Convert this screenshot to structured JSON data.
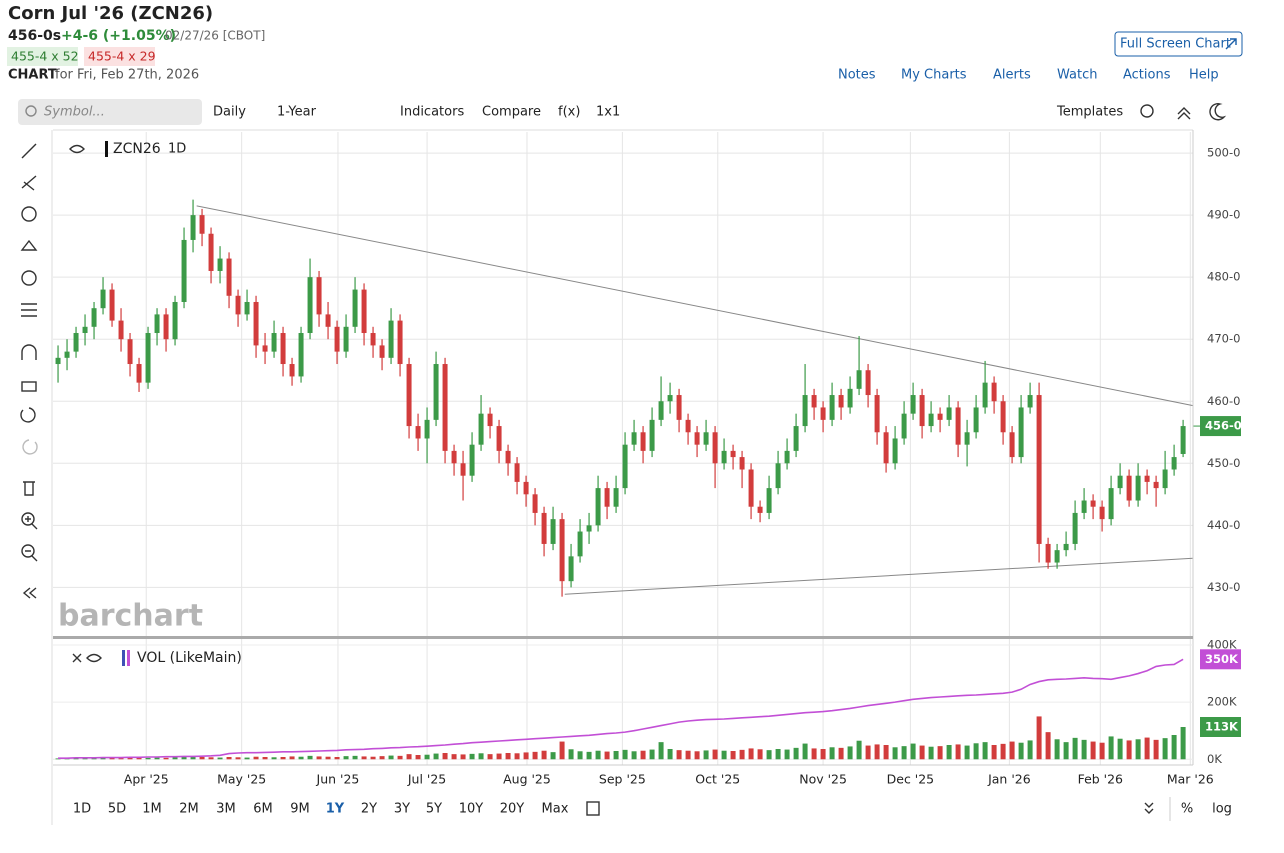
{
  "header": {
    "title": "Corn Jul '26 (ZCN26)",
    "price": "456-0s",
    "change": "+4-6 (+1.05%)",
    "date": "02/27/26 [CBOT]",
    "bid": "455-4 x 52",
    "ask": "455-4 x 29",
    "chart_label": "CHART",
    "chart_date": "for Fri, Feb 27th, 2026",
    "full_screen": "Full Screen Chart",
    "links": [
      "Notes",
      "My Charts",
      "Alerts",
      "Watch",
      "Actions",
      "Help"
    ]
  },
  "toolbar": {
    "symbol_placeholder": "Symbol...",
    "items": [
      "Daily",
      "1-Year",
      "Indicators",
      "Compare",
      "f(x)",
      "1x1"
    ],
    "templates": "Templates"
  },
  "watermark": "barchart",
  "ranges": {
    "buttons": [
      "1D",
      "5D",
      "1M",
      "2M",
      "3M",
      "6M",
      "9M",
      "1Y",
      "2Y",
      "3Y",
      "5Y",
      "10Y",
      "20Y",
      "Max"
    ],
    "active": "1Y",
    "percent": "%",
    "log": "log"
  },
  "chart_data": [
    {
      "type": "candlestick",
      "symbol": "ZCN26",
      "interval": "1D",
      "up_color": "#3c9a48",
      "down_color": "#d23c3c",
      "xlim": [
        -0.56,
        126.1
      ],
      "ylim": [
        422,
        503.4
      ],
      "grid": true,
      "xticks": [
        {
          "value": 9.8,
          "label": "Apr '25"
        },
        {
          "value": 20.4,
          "label": "May '25"
        },
        {
          "value": 31.1,
          "label": "Jun '25"
        },
        {
          "value": 41,
          "label": "Jul '25"
        },
        {
          "value": 52.1,
          "label": "Aug '25"
        },
        {
          "value": 62.7,
          "label": "Sep '25"
        },
        {
          "value": 73.3,
          "label": "Oct '25"
        },
        {
          "value": 85,
          "label": "Nov '25"
        },
        {
          "value": 94.7,
          "label": "Dec '25"
        },
        {
          "value": 105.7,
          "label": "Jan '26"
        },
        {
          "value": 115.8,
          "label": "Feb '26"
        },
        {
          "value": 125.8,
          "label": "Mar '26"
        }
      ],
      "yticks": [
        {
          "value": 500,
          "label": "500-0"
        },
        {
          "value": 490,
          "label": "490-0"
        },
        {
          "value": 480,
          "label": "480-0"
        },
        {
          "value": 470,
          "label": "470-0"
        },
        {
          "value": 460,
          "label": "460-0"
        },
        {
          "value": 450,
          "label": "450-0"
        },
        {
          "value": 440,
          "label": "440-0"
        },
        {
          "value": 430,
          "label": "430-0"
        }
      ],
      "last": {
        "value": 456,
        "label": "456-0"
      },
      "trendlines": [
        [
          [
            15.4,
            491.5
          ],
          [
            126.1,
            459.3
          ]
        ],
        [
          [
            56.3,
            428.9
          ],
          [
            126.1,
            434.7
          ]
        ]
      ],
      "ohlc": [
        [
          466,
          469,
          463,
          467
        ],
        [
          467,
          470,
          465,
          468
        ],
        [
          468,
          472,
          467,
          471
        ],
        [
          471,
          474,
          469,
          472
        ],
        [
          472,
          476,
          470,
          475
        ],
        [
          475,
          480,
          474,
          478
        ],
        [
          478,
          479,
          472,
          473
        ],
        [
          473,
          475,
          468,
          470
        ],
        [
          470,
          471,
          464,
          466
        ],
        [
          466,
          467,
          461.5,
          463
        ],
        [
          463,
          472,
          462,
          471
        ],
        [
          471,
          475,
          469,
          474
        ],
        [
          474,
          475,
          468,
          470
        ],
        [
          470,
          477,
          469,
          476
        ],
        [
          476,
          488,
          475,
          486
        ],
        [
          486,
          492.5,
          484,
          490
        ],
        [
          490,
          491,
          485,
          487
        ],
        [
          487,
          488,
          479,
          481
        ],
        [
          481,
          485,
          479,
          483
        ],
        [
          483,
          484,
          475,
          477
        ],
        [
          477,
          478,
          472,
          474
        ],
        [
          474,
          478,
          473,
          476
        ],
        [
          476,
          477,
          467,
          469
        ],
        [
          469,
          471,
          466,
          468
        ],
        [
          468,
          473,
          467,
          471
        ],
        [
          471,
          472,
          464,
          466
        ],
        [
          466,
          467,
          462.5,
          464
        ],
        [
          464,
          472,
          463,
          471
        ],
        [
          471,
          483,
          470,
          480
        ],
        [
          480,
          481,
          472,
          474
        ],
        [
          474,
          476,
          470,
          472
        ],
        [
          472,
          473,
          466,
          468
        ],
        [
          468,
          474,
          467,
          472
        ],
        [
          472,
          480,
          471,
          478
        ],
        [
          478,
          479,
          469,
          471
        ],
        [
          471,
          472,
          467,
          469
        ],
        [
          469,
          470,
          465,
          467
        ],
        [
          467,
          475,
          466,
          473
        ],
        [
          473,
          474,
          464,
          466
        ],
        [
          466,
          467,
          454,
          456
        ],
        [
          456,
          458,
          452,
          454
        ],
        [
          454,
          459,
          450,
          457
        ],
        [
          457,
          468,
          456,
          466
        ],
        [
          466,
          467,
          450,
          452
        ],
        [
          452,
          453,
          448,
          450
        ],
        [
          450,
          452,
          444,
          448
        ],
        [
          448,
          455,
          447,
          453
        ],
        [
          453,
          461,
          452,
          458
        ],
        [
          458,
          459,
          454,
          456
        ],
        [
          456,
          457,
          450,
          452
        ],
        [
          452,
          453,
          448,
          450
        ],
        [
          450,
          451,
          445,
          447
        ],
        [
          447,
          448,
          443,
          445
        ],
        [
          445,
          446,
          440,
          442
        ],
        [
          442,
          443,
          435,
          437
        ],
        [
          437,
          443,
          436,
          441
        ],
        [
          441,
          442,
          428.5,
          431
        ],
        [
          431,
          437,
          430,
          435
        ],
        [
          435,
          441,
          434,
          439
        ],
        [
          439,
          442,
          437,
          440
        ],
        [
          440,
          448,
          439,
          446
        ],
        [
          446,
          447,
          441,
          443
        ],
        [
          443,
          448,
          442,
          446
        ],
        [
          446,
          455,
          445,
          453
        ],
        [
          453,
          457,
          452,
          455
        ],
        [
          455,
          456,
          450,
          452
        ],
        [
          452,
          459,
          451,
          457
        ],
        [
          457,
          464,
          456,
          460
        ],
        [
          460,
          463,
          458,
          461
        ],
        [
          461,
          462,
          455,
          457
        ],
        [
          457,
          458,
          453,
          455
        ],
        [
          455,
          456,
          451,
          453
        ],
        [
          453,
          457,
          452,
          455
        ],
        [
          455,
          456,
          446,
          450
        ],
        [
          450,
          454,
          449,
          452
        ],
        [
          452,
          453,
          449,
          451
        ],
        [
          451,
          452,
          446,
          449
        ],
        [
          449,
          450,
          441,
          443
        ],
        [
          443,
          444,
          440.5,
          442
        ],
        [
          442,
          448,
          441,
          446
        ],
        [
          446,
          452,
          445,
          450
        ],
        [
          450,
          454,
          449,
          452
        ],
        [
          452,
          458,
          451,
          456
        ],
        [
          456,
          466,
          455,
          461
        ],
        [
          461,
          462,
          457,
          459
        ],
        [
          459,
          460,
          455,
          457
        ],
        [
          457,
          463,
          456,
          461
        ],
        [
          461,
          462,
          457,
          459
        ],
        [
          459,
          464,
          458,
          462
        ],
        [
          462,
          470.5,
          461,
          465
        ],
        [
          465,
          466,
          459,
          461
        ],
        [
          461,
          462,
          453,
          455
        ],
        [
          455,
          456,
          448.5,
          450
        ],
        [
          450,
          456,
          449,
          454
        ],
        [
          454,
          460,
          453,
          458
        ],
        [
          458,
          463,
          457,
          461
        ],
        [
          461,
          462,
          454,
          456
        ],
        [
          456,
          460,
          455,
          458
        ],
        [
          458,
          459,
          455,
          457
        ],
        [
          457,
          461,
          456,
          459
        ],
        [
          459,
          460,
          451,
          453
        ],
        [
          453,
          457,
          449.5,
          455
        ],
        [
          455,
          461,
          454,
          459
        ],
        [
          459,
          466.5,
          458,
          463
        ],
        [
          463,
          464,
          458,
          460
        ],
        [
          460,
          461,
          453,
          455
        ],
        [
          455,
          456,
          450,
          451
        ],
        [
          451,
          461,
          450,
          459
        ],
        [
          459,
          463,
          458,
          461
        ],
        [
          461,
          463,
          434,
          437
        ],
        [
          437,
          438,
          433,
          434
        ],
        [
          434,
          437,
          433,
          436
        ],
        [
          436,
          439,
          435,
          437
        ],
        [
          437,
          444,
          436,
          442
        ],
        [
          442,
          446,
          441,
          444
        ],
        [
          444,
          445,
          441,
          443
        ],
        [
          443,
          444,
          439,
          441
        ],
        [
          441,
          448,
          440,
          446
        ],
        [
          446,
          450,
          445,
          448
        ],
        [
          448,
          449,
          443,
          444
        ],
        [
          444,
          450,
          443,
          448
        ],
        [
          448,
          449,
          445,
          447
        ],
        [
          447,
          448,
          443,
          446
        ],
        [
          446,
          452,
          445,
          449
        ],
        [
          449,
          453,
          448,
          451
        ],
        [
          451.5,
          457,
          451,
          456
        ]
      ]
    },
    {
      "type": "volume",
      "title": "VOL (LikeMain)",
      "ylim": [
        -20000,
        400000
      ],
      "yticks": [
        {
          "value": 400000,
          "label": "400K"
        },
        {
          "value": 200000,
          "label": "200K"
        },
        {
          "value": 0,
          "label": "0K"
        }
      ],
      "series": [
        {
          "values": [
            3000,
            4000,
            3000,
            5000,
            4000,
            6000,
            5000,
            4000,
            6000,
            7000,
            5000,
            6000,
            5000,
            7000,
            9000,
            10000,
            8000,
            7000,
            6000,
            8000,
            7000,
            6000,
            9000,
            8000,
            7000,
            8000,
            10000,
            9000,
            12000,
            10000,
            9000,
            8000,
            11000,
            12000,
            10000,
            9000,
            11000,
            13000,
            12000,
            18000,
            15000,
            16000,
            20000,
            22000,
            18000,
            17000,
            19000,
            21000,
            18000,
            20000,
            22000,
            21000,
            24000,
            26000,
            30000,
            25000,
            62000,
            35000,
            28000,
            26000,
            30000,
            27000,
            29000,
            33000,
            28000,
            30000,
            34000,
            60000,
            36000,
            32000,
            30000,
            28000,
            31000,
            34000,
            30000,
            29000,
            33000,
            38000,
            35000,
            32000,
            36000,
            34000,
            40000,
            55000,
            38000,
            36000,
            42000,
            40000,
            45000,
            65000,
            48000,
            52000,
            50000,
            42000,
            46000,
            55000,
            48000,
            44000,
            46000,
            50000,
            52000,
            48000,
            56000,
            60000,
            50000,
            54000,
            62000,
            58000,
            66000,
            150000,
            95000,
            70000,
            60000,
            75000,
            68000,
            62000,
            58000,
            80000,
            72000,
            66000,
            70000,
            76000,
            68000,
            74000,
            85000,
            113000
          ]
        },
        {
          "color": "#c24fd6",
          "values": [
            4000,
            4000,
            5000,
            5000,
            5000,
            6000,
            6000,
            6000,
            7000,
            7000,
            8000,
            8000,
            9000,
            9000,
            10000,
            10000,
            11000,
            12000,
            14000,
            20000,
            22000,
            23000,
            23000,
            24000,
            25000,
            26000,
            26000,
            27000,
            28000,
            29000,
            30000,
            31000,
            33000,
            34000,
            35000,
            37000,
            38000,
            40000,
            41000,
            43000,
            44000,
            46000,
            48000,
            50000,
            53000,
            55000,
            58000,
            60000,
            62000,
            64000,
            66000,
            68000,
            70000,
            72000,
            74000,
            76000,
            78000,
            80000,
            82000,
            84000,
            87000,
            90000,
            92000,
            95000,
            100000,
            106000,
            112000,
            118000,
            124000,
            130000,
            134000,
            137000,
            139000,
            140000,
            141000,
            143000,
            145000,
            147000,
            149000,
            151000,
            154000,
            157000,
            160000,
            163000,
            165000,
            167000,
            170000,
            174000,
            178000,
            183000,
            188000,
            192000,
            196000,
            200000,
            205000,
            210000,
            213000,
            216000,
            218000,
            220000,
            222000,
            224000,
            225000,
            227000,
            229000,
            231000,
            235000,
            245000,
            262000,
            272000,
            278000,
            280000,
            281000,
            283000,
            285000,
            283000,
            282000,
            280000,
            286000,
            292000,
            300000,
            310000,
            325000,
            330000,
            332000,
            350000
          ]
        }
      ],
      "last_labels": [
        {
          "value": 350000,
          "label": "350K",
          "color": "#c24fd6"
        },
        {
          "value": 113000,
          "label": "113K",
          "color": "#3c9a48"
        }
      ]
    }
  ]
}
